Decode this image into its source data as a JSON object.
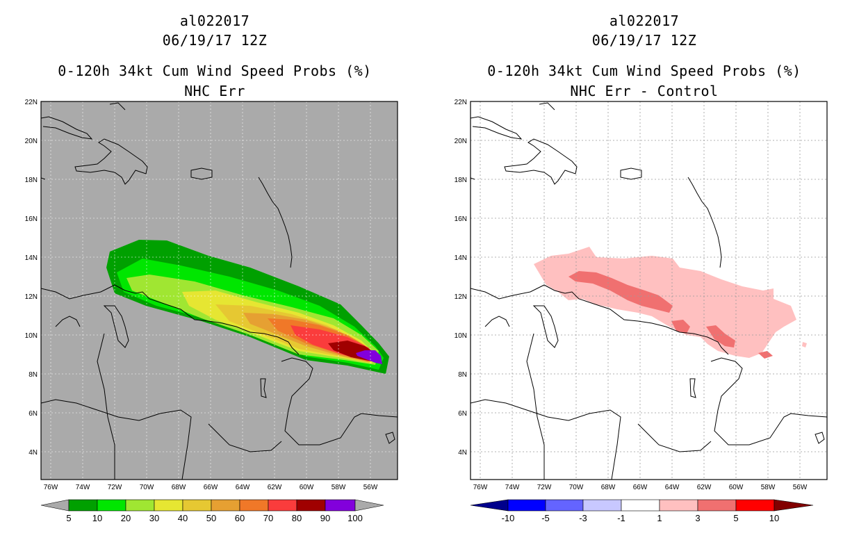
{
  "colors": {
    "land_bg": "#aaaaaa",
    "p5_10": "#00a000",
    "p10_20": "#00e600",
    "p20_30": "#a0e632",
    "p30_40": "#e6e632",
    "p40_50": "#e6c832",
    "p50_60": "#e6a032",
    "p60_70": "#f07828",
    "p70_80": "#fa3c3c",
    "p80_90": "#a00000",
    "p90_100": "#8200dc",
    "d_neg10": "#00008c",
    "d_neg5": "#0000ff",
    "d_neg3": "#6464ff",
    "d_neg1": "#c8c8ff",
    "d_pos1": "#ffc0c0",
    "d_pos3": "#f07070",
    "d_pos5": "#ff0000",
    "d_pos10": "#820000"
  },
  "panels": [
    {
      "storm_id": "al022017",
      "datetime": "06/19/17 12Z",
      "title": "0-120h 34kt Cum Wind Speed Probs (%)",
      "subtitle": "NHC Err",
      "lat_labels": [
        "22N",
        "20N",
        "18N",
        "16N",
        "14N",
        "12N",
        "10N",
        "8N",
        "6N",
        "4N"
      ],
      "lon_labels": [
        "76W",
        "74W",
        "72W",
        "70W",
        "68W",
        "66W",
        "64W",
        "62W",
        "60W",
        "58W",
        "56W"
      ],
      "colorbar_labels": [
        "5",
        "10",
        "20",
        "30",
        "40",
        "50",
        "60",
        "70",
        "80",
        "90",
        "100"
      ]
    },
    {
      "storm_id": "al022017",
      "datetime": "06/19/17 12Z",
      "title": "0-120h 34kt Cum Wind Speed Probs (%)",
      "subtitle": "NHC Err - Control",
      "lat_labels": [
        "22N",
        "20N",
        "18N",
        "16N",
        "14N",
        "12N",
        "10N",
        "8N",
        "6N",
        "4N"
      ],
      "lon_labels": [
        "76W",
        "74W",
        "72W",
        "70W",
        "68W",
        "66W",
        "64W",
        "62W",
        "60W",
        "58W",
        "56W"
      ],
      "colorbar_labels": [
        "-10",
        "-5",
        "-3",
        "-1",
        "1",
        "3",
        "5",
        "10"
      ]
    }
  ]
}
